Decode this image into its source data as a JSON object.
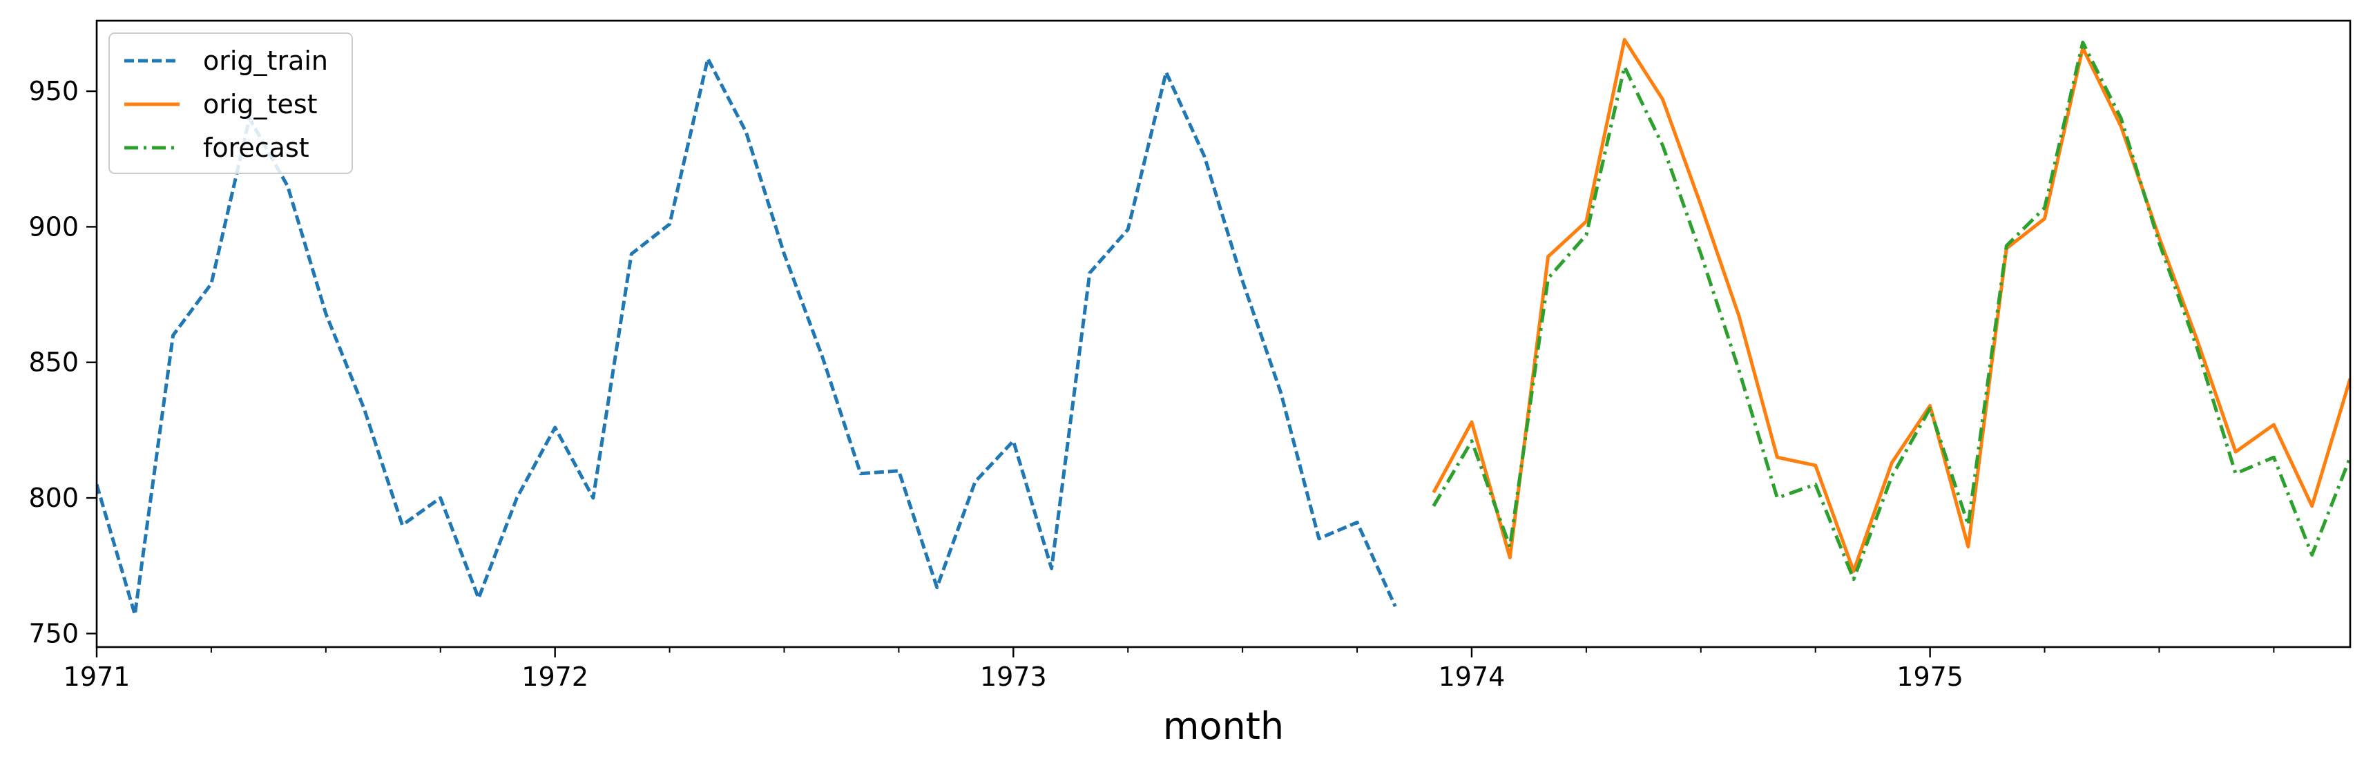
{
  "chart_data": {
    "type": "line",
    "title": "",
    "xlabel": "month",
    "ylabel": "",
    "x_unit": "year (decimal)",
    "xlim": [
      1971.0,
      1975.9167
    ],
    "ylim": [
      745,
      976
    ],
    "xtick_labels": [
      {
        "label": "1971",
        "x": 1971.0
      },
      {
        "label": "1972",
        "x": 1972.0
      },
      {
        "label": "1973",
        "x": 1973.0
      },
      {
        "label": "1974",
        "x": 1974.0
      },
      {
        "label": "1975",
        "x": 1975.0
      }
    ],
    "minor_xticks_every_months": 3,
    "yticks": [
      750,
      800,
      850,
      900,
      950
    ],
    "grid": false,
    "legend": {
      "position": "top-left",
      "entries": [
        "orig_train",
        "orig_test",
        "forecast"
      ]
    },
    "series": [
      {
        "name": "orig_train",
        "color": "#1f77b4",
        "style": "dashed",
        "x": [
          1971.0,
          1971.0833,
          1971.1667,
          1971.25,
          1971.3333,
          1971.4167,
          1971.5,
          1971.5833,
          1971.6667,
          1971.75,
          1971.8333,
          1971.9167,
          1972.0,
          1972.0833,
          1972.1667,
          1972.25,
          1972.3333,
          1972.4167,
          1972.5,
          1972.5833,
          1972.6667,
          1972.75,
          1972.8333,
          1972.9167,
          1973.0,
          1973.0833,
          1973.1667,
          1973.25,
          1973.3333,
          1973.4167,
          1973.5,
          1973.5833,
          1973.6667,
          1973.75,
          1973.8333
        ],
        "y": [
          805,
          757,
          860,
          879,
          940,
          915,
          868,
          833,
          790,
          800,
          763,
          800,
          826,
          800,
          890,
          901,
          962,
          935,
          890,
          852,
          809,
          810,
          767,
          806,
          821,
          774,
          883,
          899,
          957,
          926,
          880,
          839,
          785,
          791,
          760
        ]
      },
      {
        "name": "orig_test",
        "color": "#ff7f0e",
        "style": "solid",
        "x": [
          1973.9167,
          1974.0,
          1974.0833,
          1974.1667,
          1974.25,
          1974.3333,
          1974.4167,
          1974.5,
          1974.5833,
          1974.6667,
          1974.75,
          1974.8333,
          1974.9167,
          1975.0,
          1975.0833,
          1975.1667,
          1975.25,
          1975.3333,
          1975.4167,
          1975.5,
          1975.5833,
          1975.6667,
          1975.75,
          1975.8333,
          1975.9167
        ],
        "y": [
          802,
          828,
          778,
          889,
          902,
          969,
          947,
          908,
          867,
          815,
          812,
          773,
          813,
          834,
          782,
          892,
          903,
          966,
          937,
          896,
          858,
          817,
          827,
          797,
          844
        ]
      },
      {
        "name": "forecast",
        "color": "#2ca02c",
        "style": "dashdot",
        "x": [
          1973.9167,
          1974.0,
          1974.0833,
          1974.1667,
          1974.25,
          1974.3333,
          1974.4167,
          1974.5,
          1974.5833,
          1974.6667,
          1974.75,
          1974.8333,
          1974.9167,
          1975.0,
          1975.0833,
          1975.1667,
          1975.25,
          1975.3333,
          1975.4167,
          1975.5,
          1975.5833,
          1975.6667,
          1975.75,
          1975.8333,
          1975.9167
        ],
        "y": [
          797,
          821,
          782,
          881,
          897,
          959,
          930,
          890,
          847,
          800,
          805,
          770,
          808,
          833,
          790,
          893,
          907,
          968,
          940,
          894,
          855,
          809,
          815,
          779,
          815
        ]
      }
    ]
  }
}
